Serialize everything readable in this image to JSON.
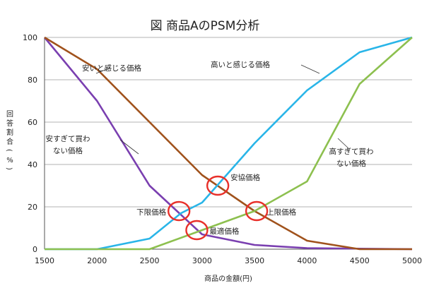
{
  "chart_data": {
    "type": "line",
    "title": "図 商品AのPSM分析",
    "xlabel": "商品の金額(円)",
    "ylabel": "回答割合(%)",
    "xlim": [
      1500,
      5000
    ],
    "ylim": [
      0,
      100
    ],
    "x_ticks": [
      1500,
      2000,
      2500,
      3000,
      3500,
      4000,
      4500,
      5000
    ],
    "y_ticks": [
      0,
      20,
      40,
      60,
      80,
      100
    ],
    "grid": "horizontal",
    "series": [
      {
        "name": "安すぎて買わない価格",
        "color": "#7a3fb0",
        "points": [
          [
            1500,
            100
          ],
          [
            2000,
            70
          ],
          [
            2500,
            30
          ],
          [
            3000,
            7
          ],
          [
            3500,
            2
          ],
          [
            4000,
            0.5
          ],
          [
            5000,
            0
          ]
        ]
      },
      {
        "name": "安いと感じる価格",
        "color": "#a0521c",
        "points": [
          [
            1500,
            100
          ],
          [
            2000,
            85
          ],
          [
            2500,
            60
          ],
          [
            3000,
            35
          ],
          [
            3500,
            18
          ],
          [
            4000,
            4
          ],
          [
            4500,
            0
          ],
          [
            5000,
            0
          ]
        ]
      },
      {
        "name": "高いと感じる価格",
        "color": "#29b5e8",
        "points": [
          [
            1500,
            0
          ],
          [
            2000,
            0
          ],
          [
            2500,
            5
          ],
          [
            2800,
            17
          ],
          [
            3000,
            22
          ],
          [
            3500,
            50
          ],
          [
            4000,
            75
          ],
          [
            4500,
            93
          ],
          [
            5000,
            100
          ]
        ]
      },
      {
        "name": "高すぎて買わない価格",
        "color": "#8dc04f",
        "points": [
          [
            1500,
            0
          ],
          [
            2000,
            0
          ],
          [
            2500,
            0
          ],
          [
            3000,
            9
          ],
          [
            3500,
            18
          ],
          [
            4000,
            32
          ],
          [
            4500,
            78
          ],
          [
            5000,
            100
          ]
        ]
      }
    ],
    "annotations": [
      {
        "label": "安協価格",
        "x": 3150,
        "y": 30
      },
      {
        "label": "下限価格",
        "x": 2780,
        "y": 18
      },
      {
        "label": "上限価格",
        "x": 3520,
        "y": 18
      },
      {
        "label": "最適価格",
        "x": 2950,
        "y": 9
      }
    ],
    "circle_color": "#e8302a",
    "grid_color": "#9a9a9a"
  }
}
